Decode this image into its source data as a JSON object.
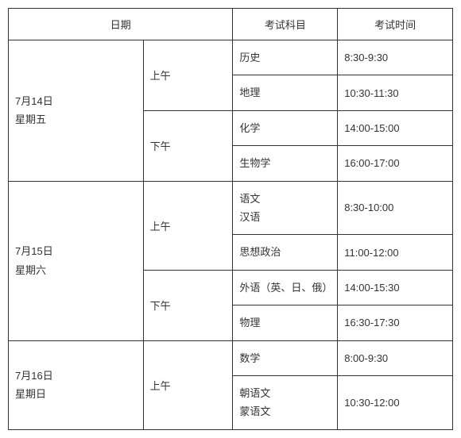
{
  "headers": {
    "date": "日期",
    "subject": "考试科目",
    "time": "考试时间"
  },
  "days": [
    {
      "date_line1": "7月14日",
      "date_line2": "星期五",
      "periods": [
        {
          "label": "上午",
          "rows": [
            {
              "subject": "历史",
              "time": "8:30-9:30"
            },
            {
              "subject": "地理",
              "time": "10:30-11:30"
            }
          ]
        },
        {
          "label": "下午",
          "rows": [
            {
              "subject": "化学",
              "time": "14:00-15:00"
            },
            {
              "subject": "生物学",
              "time": "16:00-17:00"
            }
          ]
        }
      ]
    },
    {
      "date_line1": "7月15日",
      "date_line2": "星期六",
      "periods": [
        {
          "label": "上午",
          "rows": [
            {
              "subject": "语文\n汉语",
              "time": "8:30-10:00"
            },
            {
              "subject": "思想政治",
              "time": "11:00-12:00"
            }
          ]
        },
        {
          "label": "下午",
          "rows": [
            {
              "subject": "外语（英、日、俄）",
              "time": "14:00-15:30"
            },
            {
              "subject": "物理",
              "time": "16:30-17:30"
            }
          ]
        }
      ]
    },
    {
      "date_line1": "7月16日",
      "date_line2": "星期日",
      "periods": [
        {
          "label": "上午",
          "rows": [
            {
              "subject": "数学",
              "time": "8:00-9:30"
            },
            {
              "subject": "朝语文\n蒙语文",
              "time": "10:30-12:00"
            }
          ]
        }
      ]
    }
  ]
}
